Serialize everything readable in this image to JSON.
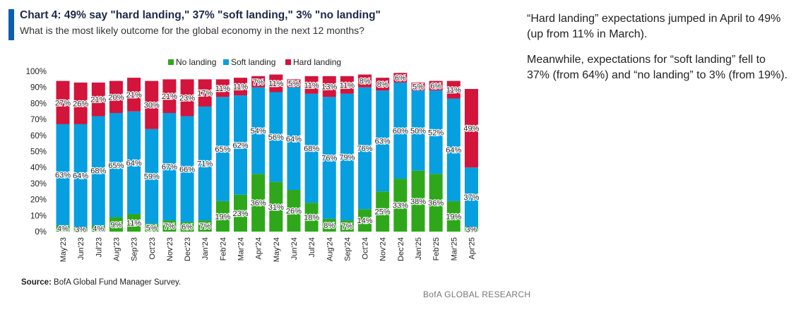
{
  "title": "Chart 4: 49% say \"hard landing,\" 37% \"soft landing,\" 3% \"no landing\"",
  "subtitle": "What is the most likely outcome for the global economy in the next 12 months?",
  "source_label": "Source:",
  "source_text": " BofA Global Fund Manager Survey.",
  "brand": "BofA GLOBAL RESEARCH",
  "commentary": {
    "p1": "“Hard landing” expectations jumped in April to 49% (up from 11% in March).",
    "p2": "Meanwhile, expectations for “soft landing” fell to 37% (from 64%) and “no landing” to 3% (from 19%)."
  },
  "colors": {
    "no_landing": "#2ea81a",
    "soft_landing": "#069fe0",
    "hard_landing": "#d3143b",
    "accent": "#0b5fb3"
  },
  "chart_data": {
    "type": "bar",
    "stacked": true,
    "ylim": [
      0,
      100
    ],
    "y_ticks": [
      "0%",
      "10%",
      "20%",
      "30%",
      "40%",
      "50%",
      "60%",
      "70%",
      "80%",
      "90%",
      "100%"
    ],
    "grid": false,
    "legend_position": "top",
    "categories": [
      "May'23",
      "Jun'23",
      "Jul'23",
      "Aug'23",
      "Sep'23",
      "Oct'23",
      "Nov'23",
      "Dec'23",
      "Jan'24",
      "Feb'24",
      "Mar'24",
      "Apr'24",
      "May'24",
      "Jun'24",
      "Jul'24",
      "Aug'24",
      "Sep'24",
      "Oct'24",
      "Nov'24",
      "Dec'24",
      "Jan'25",
      "Feb'25",
      "Mar'25",
      "Apr'25"
    ],
    "series": [
      {
        "name": "No landing",
        "color": "#2ea81a",
        "values": [
          4,
          3,
          4,
          9,
          11,
          5,
          7,
          6,
          7,
          19,
          23,
          36,
          31,
          26,
          18,
          8,
          7,
          14,
          25,
          33,
          38,
          36,
          19,
          3
        ]
      },
      {
        "name": "Soft landing",
        "color": "#069fe0",
        "values": [
          63,
          64,
          68,
          65,
          64,
          59,
          67,
          66,
          71,
          65,
          62,
          54,
          56,
          64,
          68,
          76,
          79,
          76,
          63,
          60,
          50,
          52,
          64,
          37
        ]
      },
      {
        "name": "Hard landing",
        "color": "#d3143b",
        "values": [
          27,
          26,
          21,
          20,
          21,
          30,
          21,
          23,
          17,
          11,
          11,
          7,
          11,
          5,
          11,
          13,
          11,
          8,
          8,
          6,
          5,
          6,
          11,
          49
        ]
      }
    ]
  }
}
